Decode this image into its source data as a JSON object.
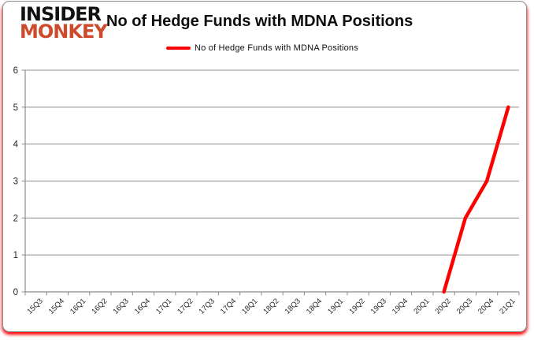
{
  "card": {
    "logo": {
      "line1": "INSIDER",
      "line2": "MONKEY",
      "line1_color": "#111111",
      "line2_color": "#cd4a2c"
    },
    "title": "No of Hedge Funds with MDNA Positions",
    "legend": {
      "label": "No of Hedge Funds with MDNA Positions",
      "swatch_color": "#ff0000"
    }
  },
  "chart_data": {
    "type": "line",
    "title": "No of Hedge Funds with MDNA Positions",
    "categories": [
      "15Q3",
      "15Q4",
      "16Q1",
      "16Q2",
      "16Q3",
      "16Q4",
      "17Q1",
      "17Q2",
      "17Q3",
      "17Q4",
      "18Q1",
      "18Q2",
      "18Q3",
      "18Q4",
      "19Q1",
      "19Q2",
      "19Q3",
      "19Q4",
      "20Q1",
      "20Q2",
      "20Q3",
      "20Q4",
      "21Q1"
    ],
    "series": [
      {
        "name": "No of Hedge Funds with MDNA Positions",
        "color": "#ff0000",
        "values": [
          null,
          null,
          null,
          null,
          null,
          null,
          null,
          null,
          null,
          null,
          null,
          null,
          null,
          null,
          null,
          null,
          null,
          null,
          null,
          0,
          2,
          3,
          5
        ]
      }
    ],
    "xlabel": "",
    "ylabel": "",
    "ylim": [
      0,
      6
    ],
    "yticks": [
      0,
      1,
      2,
      3,
      4,
      5,
      6
    ],
    "grid": true,
    "legend_position": "top-center",
    "colors": {
      "grid": "#8c8c8c",
      "axis": "#8c8c8c",
      "tick_text": "#262626"
    }
  }
}
